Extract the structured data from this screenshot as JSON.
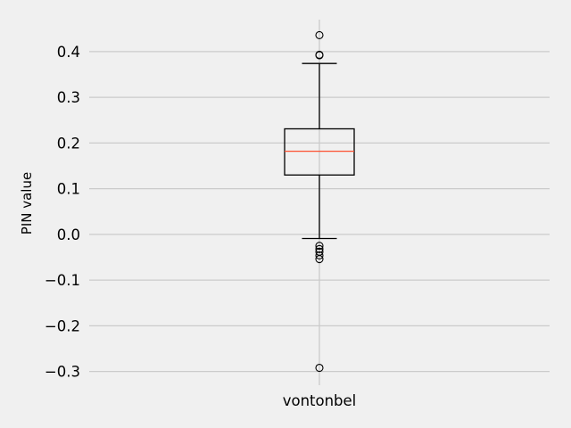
{
  "chart_data": {
    "type": "box",
    "ylabel": "PIN value",
    "xlabel": "",
    "categories": [
      "vontonbel"
    ],
    "ylim": [
      -0.33,
      0.47
    ],
    "yticks": [
      -0.3,
      -0.2,
      -0.1,
      0.0,
      0.1,
      0.2,
      0.3,
      0.4
    ],
    "ytick_labels": [
      "−0.3",
      "−0.2",
      "−0.1",
      "0.0",
      "0.1",
      "0.2",
      "0.3",
      "0.4"
    ],
    "grid": true,
    "box": {
      "whisker_low": -0.009,
      "q1": 0.13,
      "median": 0.182,
      "q3": 0.231,
      "whisker_high": 0.374
    },
    "fliers": [
      0.436,
      0.393,
      0.392,
      -0.025,
      -0.032,
      -0.038,
      -0.046,
      -0.054,
      -0.292
    ],
    "colors": {
      "background": "#f0f0f0",
      "grid": "#cbcbcb",
      "median": "#fc4f30",
      "box": "#000000"
    }
  }
}
